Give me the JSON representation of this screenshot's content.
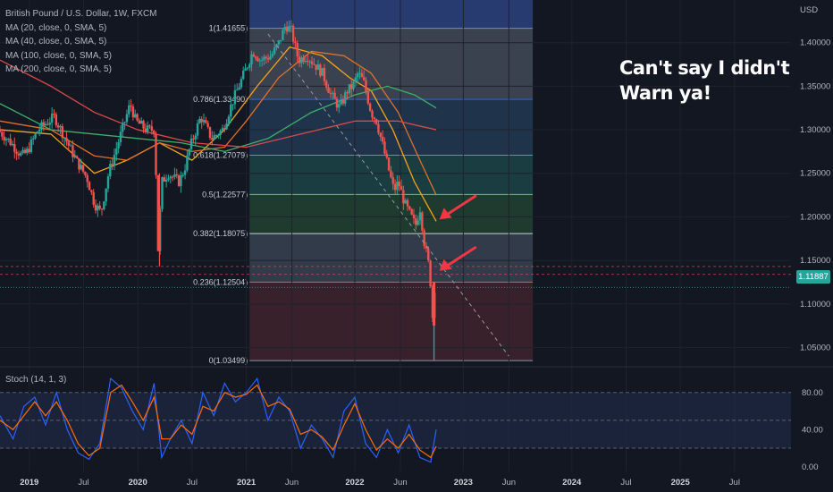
{
  "legend": {
    "title": "British Pound / U.S. Dollar, 1W, FXCM",
    "ma20": "MA (20, close, 0, SMA, 5)",
    "ma40": "MA (40, close, 0, SMA, 5)",
    "ma100": "MA (100, close, 0, SMA, 5)",
    "ma200": "MA (200, close, 0, SMA, 5)"
  },
  "annotation": {
    "line1": "Can't say I didn't",
    "line2": "Warn ya!"
  },
  "stoch_label": "Stoch (14, 1, 3)",
  "current_price": "1.11887",
  "colors": {
    "background": "#131722",
    "up": "#26a69a",
    "down": "#ef5350",
    "ma20": "#f7a21b",
    "ma40": "#e0702a",
    "ma100": "#3fae6b",
    "ma200": "#d84a4a",
    "stoch_k": "#2962ff",
    "stoch_d": "#ff6d00",
    "arrow": "#f23645"
  },
  "chart_data": [
    {
      "type": "line",
      "title": "British Pound / U.S. Dollar, 1W, FXCM",
      "currency_label": "USD",
      "y_ticks": [
        "1.40000",
        "1.35000",
        "1.30000",
        "1.25000",
        "1.20000",
        "1.15000",
        "1.10000",
        "1.05000"
      ],
      "y_tick_values": [
        1.4,
        1.35,
        1.3,
        1.25,
        1.2,
        1.15,
        1.1,
        1.05
      ],
      "ylim": [
        1.033,
        1.449
      ],
      "x_ticks": [
        "2019",
        "Jul",
        "2020",
        "Jul",
        "2021",
        "Jun",
        "2022",
        "Jun",
        "2023",
        "Jun",
        "2024",
        "Jul",
        "2025",
        "Jul"
      ],
      "x_tick_values": [
        2019.0,
        2019.5,
        2020.0,
        2020.5,
        2021.0,
        2021.42,
        2022.0,
        2022.42,
        2023.0,
        2023.42,
        2024.0,
        2024.5,
        2025.0,
        2025.5
      ],
      "xlim": [
        2018.73,
        2026.02
      ],
      "price_path": [
        [
          2018.73,
          1.3
        ],
        [
          2018.85,
          1.285
        ],
        [
          2018.95,
          1.27
        ],
        [
          2019.0,
          1.275
        ],
        [
          2019.1,
          1.3
        ],
        [
          2019.2,
          1.31
        ],
        [
          2019.25,
          1.315
        ],
        [
          2019.35,
          1.29
        ],
        [
          2019.45,
          1.265
        ],
        [
          2019.55,
          1.245
        ],
        [
          2019.62,
          1.215
        ],
        [
          2019.68,
          1.205
        ],
        [
          2019.75,
          1.25
        ],
        [
          2019.85,
          1.29
        ],
        [
          2019.95,
          1.33
        ],
        [
          2020.0,
          1.31
        ],
        [
          2020.1,
          1.3
        ],
        [
          2020.18,
          1.3
        ],
        [
          2020.2,
          1.15
        ],
        [
          2020.24,
          1.24
        ],
        [
          2020.3,
          1.25
        ],
        [
          2020.4,
          1.24
        ],
        [
          2020.45,
          1.255
        ],
        [
          2020.5,
          1.28
        ],
        [
          2020.6,
          1.315
        ],
        [
          2020.7,
          1.29
        ],
        [
          2020.8,
          1.3
        ],
        [
          2020.9,
          1.335
        ],
        [
          2021.0,
          1.365
        ],
        [
          2021.08,
          1.39
        ],
        [
          2021.15,
          1.38
        ],
        [
          2021.25,
          1.385
        ],
        [
          2021.32,
          1.4
        ],
        [
          2021.38,
          1.42
        ],
        [
          2021.43,
          1.415
        ],
        [
          2021.5,
          1.38
        ],
        [
          2021.58,
          1.385
        ],
        [
          2021.65,
          1.375
        ],
        [
          2021.72,
          1.365
        ],
        [
          2021.8,
          1.34
        ],
        [
          2021.88,
          1.325
        ],
        [
          2021.95,
          1.345
        ],
        [
          2022.0,
          1.35
        ],
        [
          2022.05,
          1.365
        ],
        [
          2022.1,
          1.355
        ],
        [
          2022.17,
          1.32
        ],
        [
          2022.22,
          1.31
        ],
        [
          2022.28,
          1.28
        ],
        [
          2022.32,
          1.26
        ],
        [
          2022.38,
          1.23
        ],
        [
          2022.42,
          1.24
        ],
        [
          2022.48,
          1.215
        ],
        [
          2022.52,
          1.205
        ],
        [
          2022.58,
          1.19
        ],
        [
          2022.62,
          1.21
        ],
        [
          2022.66,
          1.17
        ],
        [
          2022.7,
          1.145
        ],
        [
          2022.72,
          1.12
        ],
        [
          2022.74,
          1.075
        ],
        [
          2022.75,
          1.119
        ]
      ],
      "wick_low": [
        2022.73,
        1.035
      ],
      "fibonacci": [
        {
          "level": "1",
          "price": 1.41655,
          "label": "1(1.41655)",
          "color": "#2a3f7a"
        },
        {
          "level": "0.786",
          "price": 1.3349,
          "label": "0.786(1.33490)",
          "color": "#5b6474"
        },
        {
          "level": "0.618",
          "price": 1.27079,
          "label": "0.618(1.27079)",
          "color": "#2a4d6e"
        },
        {
          "level": "0.5",
          "price": 1.22577,
          "label": "0.5(1.22577)",
          "color": "#1f5c5a"
        },
        {
          "level": "0.382",
          "price": 1.18075,
          "label": "0.382(1.18075)",
          "color": "#2a5a3a"
        },
        {
          "level": "0.236",
          "price": 1.12504,
          "label": "0.236(1.12504)",
          "color": "#4a5a6a"
        },
        {
          "level": "0",
          "price": 1.03499,
          "label": "0(1.03499)",
          "color": "#5a2a33"
        }
      ],
      "series": [
        {
          "name": "MA (20, close, 0, SMA, 5)",
          "x": [
            2018.73,
            2019.2,
            2019.6,
            2019.9,
            2020.2,
            2020.5,
            2020.8,
            2021.1,
            2021.4,
            2021.7,
            2021.95,
            2022.15,
            2022.35,
            2022.55,
            2022.75
          ],
          "y": [
            1.3,
            1.295,
            1.25,
            1.265,
            1.285,
            1.265,
            1.3,
            1.35,
            1.395,
            1.385,
            1.36,
            1.345,
            1.3,
            1.24,
            1.195
          ]
        },
        {
          "name": "MA (40, close, 0, SMA, 5)",
          "x": [
            2018.73,
            2019.2,
            2019.6,
            2019.9,
            2020.2,
            2020.5,
            2020.8,
            2021.0,
            2021.3,
            2021.6,
            2021.9,
            2022.15,
            2022.4,
            2022.6,
            2022.75
          ],
          "y": [
            1.31,
            1.3,
            1.27,
            1.265,
            1.285,
            1.275,
            1.28,
            1.31,
            1.36,
            1.39,
            1.385,
            1.365,
            1.32,
            1.265,
            1.225
          ]
        },
        {
          "name": "MA (100, close, 0, SMA, 5)",
          "x": [
            2018.73,
            2019.2,
            2019.6,
            2020.0,
            2020.4,
            2020.8,
            2021.2,
            2021.6,
            2022.0,
            2022.3,
            2022.55,
            2022.75
          ],
          "y": [
            1.33,
            1.3,
            1.295,
            1.29,
            1.285,
            1.275,
            1.29,
            1.32,
            1.34,
            1.35,
            1.34,
            1.325
          ]
        },
        {
          "name": "MA (200, close, 0, SMA, 5)",
          "x": [
            2018.73,
            2019.2,
            2019.6,
            2020.0,
            2020.5,
            2021.0,
            2021.5,
            2022.0,
            2022.4,
            2022.75
          ],
          "y": [
            1.38,
            1.35,
            1.32,
            1.3,
            1.285,
            1.28,
            1.295,
            1.31,
            1.31,
            1.3
          ]
        }
      ],
      "trendline": {
        "x": [
          2021.2,
          2023.42
        ],
        "y": [
          1.41,
          1.04
        ]
      },
      "arrows": [
        {
          "x": 2022.78,
          "y": 1.197
        },
        {
          "x": 2022.78,
          "y": 1.138
        }
      ]
    },
    {
      "type": "line",
      "title": "Stoch (14, 1, 3)",
      "y_ticks": [
        "80.00",
        "40.00",
        "0.00"
      ],
      "y_tick_values": [
        80,
        40,
        0
      ],
      "ylim": [
        -5,
        100
      ],
      "band": [
        20,
        80
      ],
      "series": [
        {
          "name": "%K",
          "x": [
            2018.73,
            2018.85,
            2018.95,
            2019.05,
            2019.15,
            2019.25,
            2019.35,
            2019.45,
            2019.55,
            2019.65,
            2019.75,
            2019.85,
            2019.95,
            2020.05,
            2020.15,
            2020.22,
            2020.3,
            2020.4,
            2020.5,
            2020.6,
            2020.7,
            2020.8,
            2020.9,
            2021.0,
            2021.1,
            2021.2,
            2021.3,
            2021.4,
            2021.5,
            2021.6,
            2021.7,
            2021.8,
            2021.9,
            2022.0,
            2022.1,
            2022.2,
            2022.3,
            2022.4,
            2022.5,
            2022.6,
            2022.7,
            2022.75
          ],
          "y": [
            55,
            30,
            65,
            75,
            45,
            80,
            40,
            15,
            8,
            25,
            95,
            85,
            60,
            40,
            90,
            10,
            30,
            50,
            25,
            80,
            55,
            90,
            70,
            80,
            95,
            50,
            75,
            60,
            20,
            45,
            30,
            10,
            60,
            75,
            25,
            10,
            40,
            15,
            45,
            10,
            5,
            40
          ]
        },
        {
          "name": "%D",
          "x": [
            2018.73,
            2018.85,
            2018.95,
            2019.05,
            2019.15,
            2019.25,
            2019.35,
            2019.45,
            2019.55,
            2019.65,
            2019.75,
            2019.85,
            2019.95,
            2020.05,
            2020.15,
            2020.22,
            2020.3,
            2020.4,
            2020.5,
            2020.6,
            2020.7,
            2020.8,
            2020.9,
            2021.0,
            2021.1,
            2021.2,
            2021.3,
            2021.4,
            2021.5,
            2021.6,
            2021.7,
            2021.8,
            2021.9,
            2022.0,
            2022.1,
            2022.2,
            2022.3,
            2022.4,
            2022.5,
            2022.6,
            2022.7,
            2022.75
          ],
          "y": [
            50,
            40,
            55,
            70,
            55,
            70,
            50,
            25,
            12,
            20,
            80,
            88,
            70,
            50,
            75,
            30,
            30,
            45,
            35,
            65,
            60,
            80,
            75,
            78,
            88,
            65,
            70,
            62,
            35,
            40,
            32,
            18,
            45,
            68,
            40,
            18,
            30,
            20,
            35,
            18,
            10,
            22
          ]
        }
      ]
    }
  ]
}
